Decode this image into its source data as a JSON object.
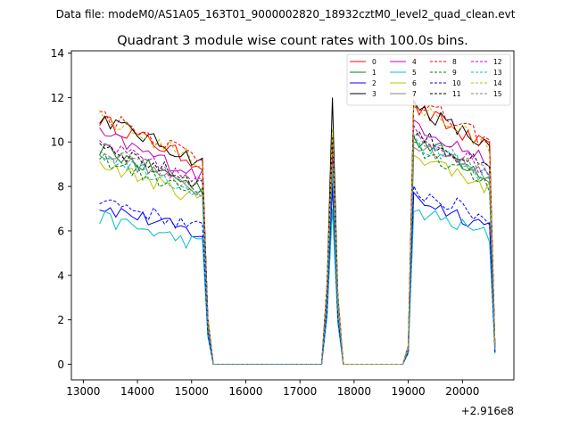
{
  "chart_data": {
    "type": "line",
    "suptitle": "Data file: modeM0/AS1A05_163T01_9000002820_18932cztM0_level2_quad_clean.evt",
    "title": "Quadrant 3 module wise count rates with 100.0s bins.",
    "xlabel": "",
    "ylabel": "",
    "x_offset_label": "+2.916e8",
    "xlim": [
      12780,
      20950
    ],
    "ylim": [
      -0.7,
      14.1
    ],
    "xticks": [
      13000,
      14000,
      15000,
      16000,
      17000,
      18000,
      19000,
      20000
    ],
    "xtick_labels": [
      "13000",
      "14000",
      "15000",
      "16000",
      "17000",
      "18000",
      "19000",
      "20000"
    ],
    "yticks": [
      0,
      2,
      4,
      6,
      8,
      10,
      12,
      14
    ],
    "ytick_labels": [
      "0",
      "2",
      "4",
      "6",
      "8",
      "10",
      "12",
      "14"
    ],
    "legend_position": "top-right",
    "segments": [
      {
        "start": 13300,
        "end": 15200
      },
      {
        "start": 17400,
        "end": 17700
      },
      {
        "start": 19000,
        "end": 20600
      }
    ],
    "series": [
      {
        "name": "0",
        "color": "#ff0000",
        "dash": "solid",
        "level": 10.2,
        "peak": 9.8
      },
      {
        "name": "1",
        "color": "#008000",
        "dash": "solid",
        "level": 9.0,
        "peak": 9.0
      },
      {
        "name": "2",
        "color": "#0000ff",
        "dash": "solid",
        "level": 6.6,
        "peak": 8.0
      },
      {
        "name": "3",
        "color": "#000000",
        "dash": "solid",
        "level": 10.3,
        "peak": 12.0
      },
      {
        "name": "4",
        "color": "#c000c0",
        "dash": "solid",
        "level": 9.6,
        "peak": 10.0
      },
      {
        "name": "5",
        "color": "#00c0c0",
        "dash": "solid",
        "level": 6.1,
        "peak": 7.0
      },
      {
        "name": "6",
        "color": "#c0c000",
        "dash": "solid",
        "level": 8.4,
        "peak": 9.6
      },
      {
        "name": "7",
        "color": "#808080",
        "dash": "solid",
        "level": 8.9,
        "peak": 9.2
      },
      {
        "name": "8",
        "color": "#ff0000",
        "dash": "dashed",
        "level": 10.5,
        "peak": 10.3
      },
      {
        "name": "9",
        "color": "#008000",
        "dash": "dashed",
        "level": 8.6,
        "peak": 9.3
      },
      {
        "name": "10",
        "color": "#0000ff",
        "dash": "dashed",
        "level": 6.9,
        "peak": 8.3
      },
      {
        "name": "11",
        "color": "#000000",
        "dash": "dashed",
        "level": 9.2,
        "peak": 10.2
      },
      {
        "name": "12",
        "color": "#c000c0",
        "dash": "dashed",
        "level": 9.2,
        "peak": 9.4
      },
      {
        "name": "13",
        "color": "#00c0c0",
        "dash": "dashed",
        "level": 8.8,
        "peak": 8.8
      },
      {
        "name": "14",
        "color": "#c0c000",
        "dash": "dashed",
        "level": 10.3,
        "peak": 10.6
      },
      {
        "name": "15",
        "color": "#808080",
        "dash": "dashed",
        "level": 9.0,
        "peak": 9.0
      }
    ]
  }
}
